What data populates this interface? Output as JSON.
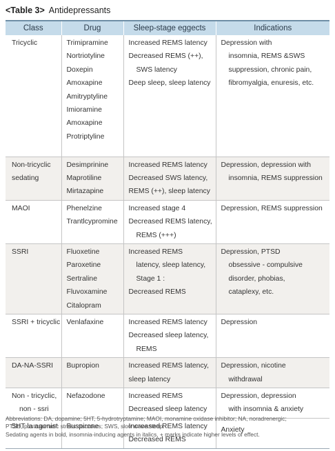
{
  "caption": {
    "label": "<Table 3>",
    "title": "Antidepressants"
  },
  "columns": [
    "Class",
    "Drug",
    "Sleep-stage eggects",
    "Indications"
  ],
  "rows": [
    {
      "class": [
        "Tricyclic"
      ],
      "drug": [
        "Trimipramine",
        "Nortriotyline",
        "Doxepin",
        "Amoxapine",
        "Amitryptyline",
        "Imioramine",
        "Amoxapine",
        "Protriptyline"
      ],
      "effects": [
        "Increased REMS latency",
        "Decreased REMS (++),",
        "SWS latency",
        "Deep sleep, sleep latency"
      ],
      "indications": [
        "Depression with",
        "insomnia, REMS &SWS",
        "suppression, chronic pain,",
        "fibromyalgia, enuresis, etc."
      ]
    },
    {
      "class": [
        "Non-tricyclic",
        "sedating"
      ],
      "drug": [
        "Desimprinine",
        "Maprotiline",
        "Mirtazapine"
      ],
      "effects": [
        "Increased REMS latency",
        "Decreased SWS latency,",
        "REMS (++), sleep latency"
      ],
      "indications": [
        "Depression, depression with",
        "insomnia, REMS suppression"
      ]
    },
    {
      "class": [
        "MAOI"
      ],
      "drug": [
        "Phenelzine",
        "Trantlcypromine"
      ],
      "effects": [
        "Increased stage 4",
        "Decreased REMS latency,",
        "REMS (+++)"
      ],
      "indications": [
        "Depression, REMS suppression"
      ]
    },
    {
      "class": [
        "SSRI"
      ],
      "drug": [
        "Fluoxetine",
        "Paroxetine",
        "Sertraline",
        "Fluvoxamine",
        "Citalopram"
      ],
      "effects": [
        "Increased REMS",
        "latency, sleep latency,",
        "Stage 1 :",
        "Decreased REMS"
      ],
      "indications": [
        "Depression, PTSD",
        "obsessive - compulsive",
        "disorder, phobias,",
        "cataplexy, etc."
      ]
    },
    {
      "class": [
        "SSRI + tricyclic"
      ],
      "drug": [
        "Venlafaxine"
      ],
      "effects": [
        "Increased REMS latency",
        "Decreased sleep latency,",
        "REMS"
      ],
      "indications": [
        "Depression"
      ]
    },
    {
      "class": [
        "DA-NA-SSRI"
      ],
      "drug": [
        "Bupropion"
      ],
      "effects": [
        "Increased REMS latency,",
        "sleep latency"
      ],
      "indications": [
        "Depression, nicotine",
        "withdrawal"
      ]
    },
    {
      "class": [
        "Non - tricyclic,",
        "non - ssri"
      ],
      "drug": [
        "Nefazodone"
      ],
      "effects": [
        "Increased REMS",
        "Decreased sleep latency"
      ],
      "indications": [
        "Depression, depression",
        "with insomnia & anxiety"
      ]
    },
    {
      "class": [
        "5HT la agonist"
      ],
      "drug": [
        "Buspirone"
      ],
      "effects": [
        "Increased REMS latency",
        "Decreased REMS"
      ],
      "indications": [
        "Anxiety"
      ]
    }
  ],
  "notes": [
    "Abbreviations: DA, dopamine; 5HT, 5-hydrotryptamine; MAOI, monamine oxidase inhibitor; NA, noradrenergic;",
    "PTSD, posttraumatic stress disorders; SWS, slow wave sleep.",
    "Sedating agents in bold, insomnia-inducing agents in italics, + marks indicate higher levels of effect."
  ]
}
